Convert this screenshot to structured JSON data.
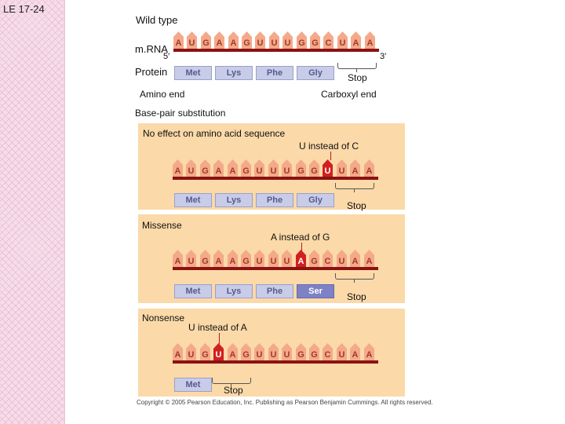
{
  "slide_label": "LE 17-24",
  "wild_type": {
    "title": "Wild type",
    "mrna_label": "m.RNA",
    "five_prime": "5′",
    "three_prime": "3′",
    "protein_label": "Protein",
    "amino_end": "Amino end",
    "carboxyl_end": "Carboxyl end",
    "stop_label": "Stop",
    "bases": [
      "A",
      "U",
      "G",
      "A",
      "A",
      "G",
      "U",
      "U",
      "U",
      "G",
      "G",
      "C",
      "U",
      "A",
      "A"
    ],
    "amino_acids": [
      "Met",
      "Lys",
      "Phe",
      "Gly"
    ]
  },
  "section_title": "Base-pair substitution",
  "panels": [
    {
      "title": "No effect on amino acid sequence",
      "mutation_label": "U instead of C",
      "bases": [
        "A",
        "U",
        "G",
        "A",
        "A",
        "G",
        "U",
        "U",
        "U",
        "G",
        "G",
        "U",
        "U",
        "A",
        "A"
      ],
      "mutated_index": 11,
      "amino_acids": [
        "Met",
        "Lys",
        "Phe",
        "Gly"
      ],
      "mutated_aa_index": null,
      "stop_label": "Stop"
    },
    {
      "title": "Missense",
      "mutation_label": "A instead of G",
      "bases": [
        "A",
        "U",
        "G",
        "A",
        "A",
        "G",
        "U",
        "U",
        "U",
        "A",
        "G",
        "C",
        "U",
        "A",
        "A"
      ],
      "mutated_index": 9,
      "amino_acids": [
        "Met",
        "Lys",
        "Phe",
        "Ser"
      ],
      "mutated_aa_index": 3,
      "stop_label": "Stop"
    },
    {
      "title": "Nonsense",
      "mutation_label": "U instead of A",
      "bases": [
        "A",
        "U",
        "G",
        "U",
        "A",
        "G",
        "U",
        "U",
        "U",
        "G",
        "G",
        "C",
        "U",
        "A",
        "A"
      ],
      "mutated_index": 3,
      "amino_acids": [
        "Met"
      ],
      "mutated_aa_index": null,
      "stop_label": "Stop"
    }
  ],
  "copyright": "Copyright © 2005 Pearson Education, Inc. Publishing as Pearson Benjamin Cummings. All rights reserved.",
  "colors": {
    "tooth": "#f4a98a",
    "mutated_tooth": "#d21f1f",
    "backbone": "#8a1313",
    "amino_acid": "#c9cce8",
    "mutated_amino_acid": "#7d82c7",
    "panel": "#fbd9a8"
  }
}
